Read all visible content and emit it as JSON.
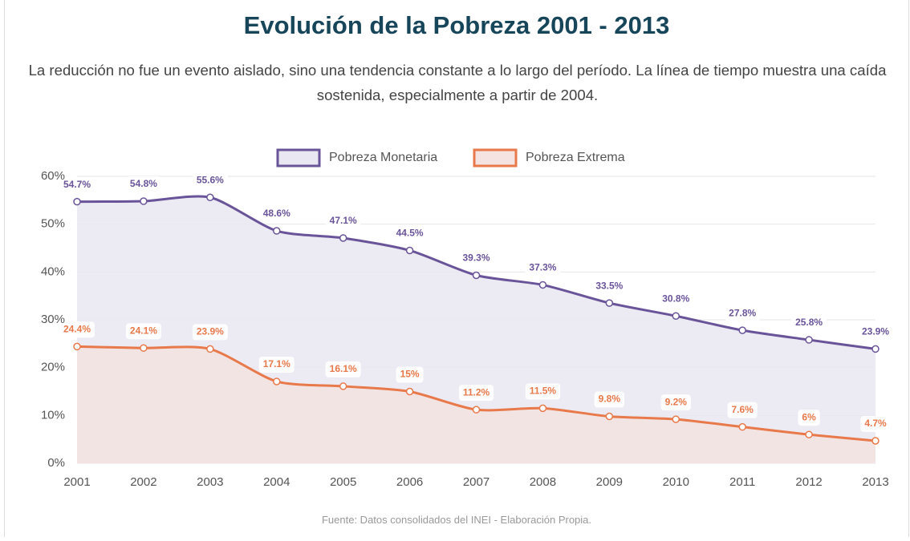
{
  "chart_data": {
    "type": "line",
    "title": "Evolución de la Pobreza 2001 - 2013",
    "subtitle": "La reducción no fue un evento aislado, sino una tendencia constante a lo largo del período. La línea de tiempo muestra una caída sostenida, especialmente a partir de 2004.",
    "source": "Fuente: Datos consolidados del INEI - Elaboración Propia.",
    "categories": [
      "2001",
      "2002",
      "2003",
      "2004",
      "2005",
      "2006",
      "2007",
      "2008",
      "2009",
      "2010",
      "2011",
      "2012",
      "2013"
    ],
    "series": [
      {
        "name": "Pobreza Monetaria",
        "color": "#6a5499",
        "area_color": "#e9e7f1",
        "values": [
          54.7,
          54.8,
          55.6,
          48.6,
          47.1,
          44.5,
          39.3,
          37.3,
          33.5,
          30.8,
          27.8,
          25.8,
          23.9
        ],
        "value_labels": [
          "54.7%",
          "54.8%",
          "55.6%",
          "48.6%",
          "47.1%",
          "44.5%",
          "39.3%",
          "37.3%",
          "33.5%",
          "30.8%",
          "27.8%",
          "25.8%",
          "23.9%"
        ]
      },
      {
        "name": "Pobreza Extrema",
        "color": "#e8794a",
        "area_color": "#f5e3e1",
        "values": [
          24.4,
          24.1,
          23.9,
          17.1,
          16.1,
          15,
          11.2,
          11.5,
          9.8,
          9.2,
          7.6,
          6,
          4.7
        ],
        "value_labels": [
          "24.4%",
          "24.1%",
          "23.9%",
          "17.1%",
          "16.1%",
          "15%",
          "11.2%",
          "11.5%",
          "9.8%",
          "9.2%",
          "7.6%",
          "6%",
          "4.7%"
        ]
      }
    ],
    "ylim": [
      0,
      60
    ],
    "yticks": [
      {
        "value": 0,
        "label": "0%"
      },
      {
        "value": 10,
        "label": "10%"
      },
      {
        "value": 20,
        "label": "20%"
      },
      {
        "value": 30,
        "label": "30%"
      },
      {
        "value": 40,
        "label": "40%"
      },
      {
        "value": 50,
        "label": "50%"
      },
      {
        "value": 60,
        "label": "60%"
      }
    ],
    "grid": true,
    "legend": "top"
  }
}
